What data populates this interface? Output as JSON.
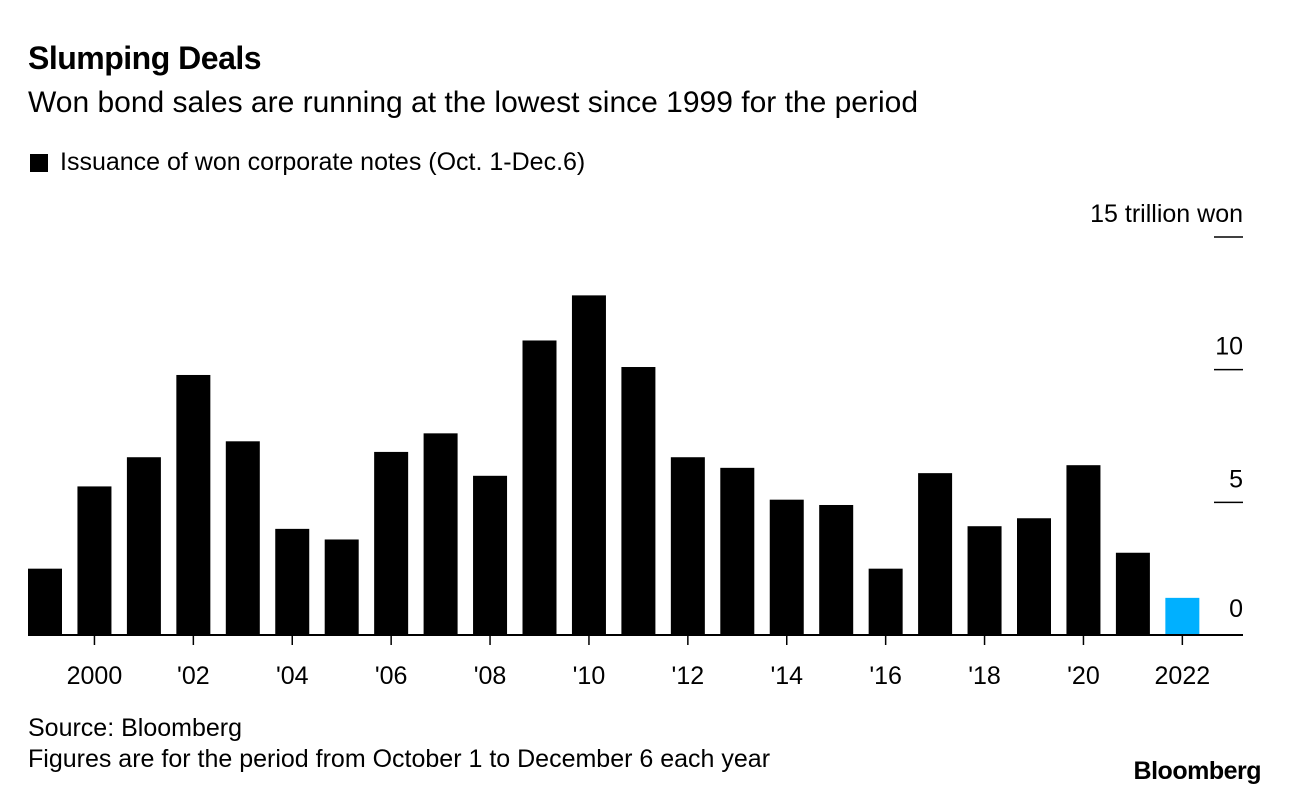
{
  "header": {
    "title": "Slumping Deals",
    "subtitle": "Won bond sales are running at the lowest since 1999 for the period"
  },
  "legend": {
    "label": "Issuance of won corporate notes (Oct. 1-Dec.6)"
  },
  "footer": {
    "source": "Source: Bloomberg",
    "note": "Figures are for the period from October 1 to December 6 each year",
    "brand": "Bloomberg"
  },
  "colors": {
    "bar": "#000000",
    "highlight": "#00b0ff"
  },
  "chart_data": {
    "type": "bar",
    "title": "Slumping Deals",
    "subtitle": "Won bond sales are running at the lowest since 1999 for the period",
    "ylabel": "15 trillion won",
    "xlabel": "",
    "ylim": [
      0,
      15
    ],
    "yticks": [
      {
        "value": 15,
        "label": "15 trillion won"
      },
      {
        "value": 10,
        "label": "10"
      },
      {
        "value": 5,
        "label": "5"
      },
      {
        "value": 0,
        "label": "0"
      }
    ],
    "categories": [
      "1999",
      "2000",
      "2001",
      "2002",
      "2003",
      "2004",
      "2005",
      "2006",
      "2007",
      "2008",
      "2009",
      "2010",
      "2011",
      "2012",
      "2013",
      "2014",
      "2015",
      "2016",
      "2017",
      "2018",
      "2019",
      "2020",
      "2021",
      "2022"
    ],
    "values": [
      2.5,
      5.6,
      6.7,
      9.8,
      7.3,
      4.0,
      3.6,
      6.9,
      7.6,
      6.0,
      11.1,
      12.8,
      10.1,
      6.7,
      6.3,
      5.1,
      4.9,
      2.5,
      6.1,
      4.1,
      4.4,
      6.4,
      3.1,
      1.4
    ],
    "highlight": [
      "2022"
    ],
    "xtick_labels": [
      {
        "category": "2000",
        "label": "2000"
      },
      {
        "category": "2002",
        "label": "'02"
      },
      {
        "category": "2004",
        "label": "'04"
      },
      {
        "category": "2006",
        "label": "'06"
      },
      {
        "category": "2008",
        "label": "'08"
      },
      {
        "category": "2010",
        "label": "'10"
      },
      {
        "category": "2012",
        "label": "'12"
      },
      {
        "category": "2014",
        "label": "'14"
      },
      {
        "category": "2016",
        "label": "'16"
      },
      {
        "category": "2018",
        "label": "'18"
      },
      {
        "category": "2020",
        "label": "'20"
      },
      {
        "category": "2022",
        "label": "2022"
      }
    ],
    "grid": false,
    "legend_position": "top-left"
  }
}
